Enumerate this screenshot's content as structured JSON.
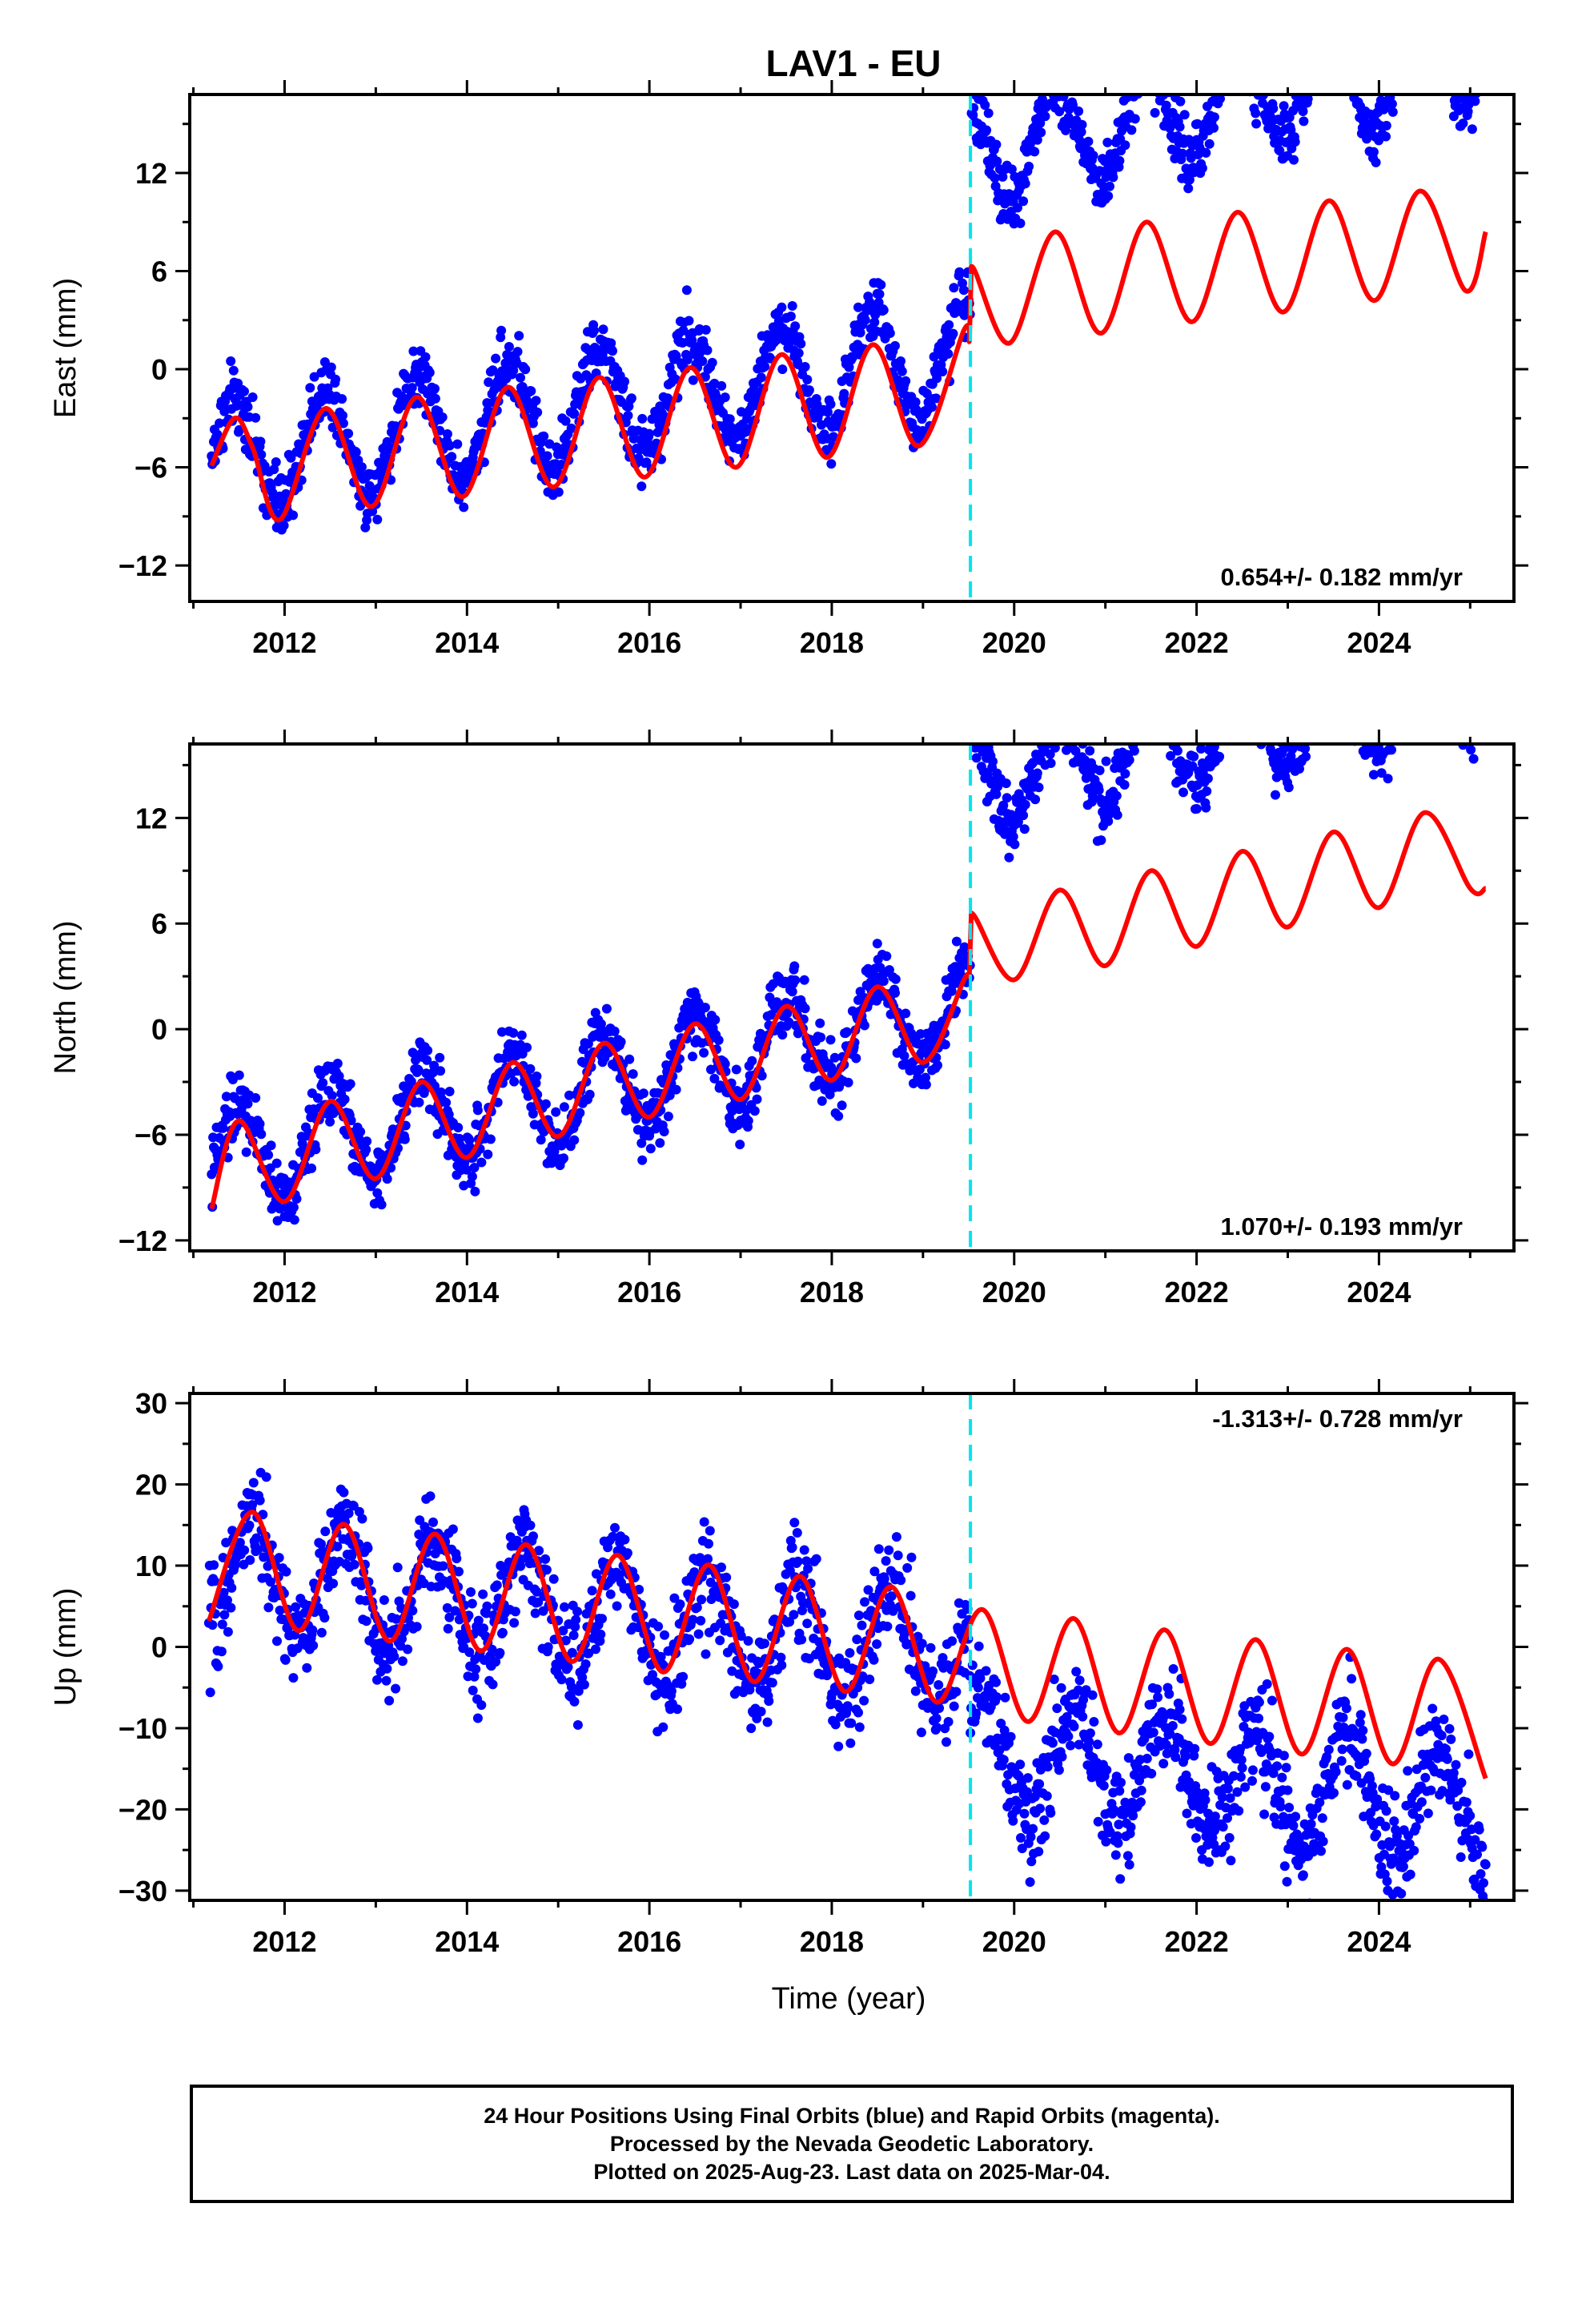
{
  "title": "LAV1 - EU",
  "xlabel": "Time (year)",
  "colors": {
    "final_orbits": "#0000ff",
    "model": "#ff0000",
    "offset": "#00e5ee"
  },
  "footer": {
    "line1": "24 Hour Positions Using Final Orbits (blue) and Rapid Orbits (magenta).",
    "line2": "Processed by the Nevada Geodetic Laboratory.",
    "line3": "Plotted on 2025-Aug-23. Last data on 2025-Mar-04."
  },
  "chart_data": [
    {
      "type": "scatter",
      "ylabel": "East (mm)",
      "xlim": [
        2010.96,
        2025.48
      ],
      "ylim": [
        -14.2,
        16.8
      ],
      "xticks": [
        2012,
        2014,
        2016,
        2018,
        2020,
        2022,
        2024
      ],
      "yticks": [
        -12,
        -6,
        0,
        6,
        12
      ],
      "offset_epoch": 2019.52,
      "rate_label": "0.654+/- 0.182 mm/yr",
      "rate_position": "bottom-right",
      "series": [
        {
          "name": "model",
          "x": [
            2011.2,
            2011.45,
            2011.65,
            2011.95,
            2012.45,
            2012.95,
            2013.45,
            2013.95,
            2014.45,
            2014.95,
            2015.45,
            2015.95,
            2016.45,
            2016.95,
            2017.45,
            2017.95,
            2018.45,
            2018.95,
            2019.45,
            2019.51,
            2019.53,
            2019.95,
            2020.45,
            2020.95,
            2021.45,
            2021.95,
            2022.45,
            2022.95,
            2023.45,
            2023.95,
            2024.45,
            2024.95,
            2025.17
          ],
          "values": [
            -5.9,
            -3.0,
            -4.8,
            -9.2,
            -2.4,
            -8.4,
            -1.7,
            -7.8,
            -1.1,
            -7.2,
            -0.5,
            -6.6,
            0.1,
            -6.0,
            0.9,
            -5.4,
            1.5,
            -4.7,
            2.4,
            1.8,
            6.3,
            1.6,
            8.4,
            2.2,
            9.0,
            2.9,
            9.6,
            3.5,
            10.3,
            4.2,
            10.9,
            4.8,
            8.4
          ]
        },
        {
          "name": "daily",
          "trend": {
            "t0": 2011.17,
            "pre": [
              -5.5,
              0.78
            ],
            "post": [
              3.6,
              1.15
            ]
          },
          "seasonal": {
            "amp": 3.4,
            "peak": 0.45
          },
          "noise": 1.35,
          "count": 1800
        }
      ]
    },
    {
      "type": "scatter",
      "ylabel": "North (mm)",
      "xlim": [
        2010.96,
        2025.48
      ],
      "ylim": [
        -12.6,
        16.2
      ],
      "xticks": [
        2012,
        2014,
        2016,
        2018,
        2020,
        2022,
        2024
      ],
      "yticks": [
        -12,
        -6,
        0,
        6,
        12
      ],
      "offset_epoch": 2019.52,
      "rate_label": "1.070+/- 0.193 mm/yr",
      "rate_position": "bottom-right",
      "series": [
        {
          "name": "model",
          "x": [
            2011.2,
            2011.5,
            2012.0,
            2012.5,
            2013.0,
            2013.5,
            2014.0,
            2014.5,
            2015.0,
            2015.5,
            2016.0,
            2016.5,
            2017.0,
            2017.5,
            2018.0,
            2018.5,
            2019.0,
            2019.45,
            2019.51,
            2019.53,
            2020.0,
            2020.5,
            2021.0,
            2021.5,
            2022.0,
            2022.5,
            2023.0,
            2023.5,
            2024.0,
            2024.5,
            2025.0,
            2025.17
          ],
          "values": [
            -10.2,
            -5.2,
            -9.8,
            -4.1,
            -8.5,
            -3.0,
            -7.3,
            -1.9,
            -6.1,
            -0.8,
            -5.0,
            0.3,
            -4.0,
            1.3,
            -2.9,
            2.4,
            -1.9,
            2.8,
            3.2,
            6.6,
            2.8,
            7.9,
            3.6,
            9.0,
            4.7,
            10.1,
            5.8,
            11.2,
            6.9,
            12.3,
            8.0,
            8.0
          ]
        },
        {
          "name": "daily",
          "trend": {
            "t0": 2011.17,
            "pre": [
              -7.6,
              1.05
            ],
            "post": [
              4.6,
              1.11
            ]
          },
          "seasonal": {
            "amp": 2.8,
            "peak": 0.5
          },
          "noise": 1.3,
          "count": 1800
        }
      ]
    },
    {
      "type": "scatter",
      "ylabel": "Up (mm)",
      "xlim": [
        2010.96,
        2025.48
      ],
      "ylim": [
        -31.2,
        31.2
      ],
      "xticks": [
        2012,
        2014,
        2016,
        2018,
        2020,
        2022,
        2024
      ],
      "yticks": [
        -30,
        -20,
        -10,
        0,
        10,
        20,
        30
      ],
      "offset_epoch": 2019.52,
      "rate_label": "-1.313+/- 0.728 mm/yr",
      "rate_position": "top-right",
      "series": [
        {
          "name": "model",
          "x": [
            2011.17,
            2011.65,
            2012.15,
            2012.65,
            2013.15,
            2013.65,
            2014.15,
            2014.65,
            2015.15,
            2015.65,
            2016.15,
            2016.65,
            2017.15,
            2017.65,
            2018.15,
            2018.65,
            2019.15,
            2019.65,
            2020.15,
            2020.65,
            2021.15,
            2021.65,
            2022.15,
            2022.65,
            2023.15,
            2023.65,
            2024.15,
            2024.65,
            2025.17
          ],
          "values": [
            3.2,
            16.6,
            2.0,
            15.1,
            0.7,
            13.9,
            -0.5,
            12.6,
            -1.8,
            11.3,
            -3.1,
            10.1,
            -4.3,
            8.7,
            -5.5,
            7.4,
            -6.8,
            4.6,
            -9.2,
            3.5,
            -10.6,
            2.1,
            -11.9,
            0.9,
            -13.2,
            -0.3,
            -14.4,
            -1.5,
            -16.2
          ]
        },
        {
          "name": "daily",
          "trend": {
            "t0": 2011.17,
            "pre": [
              9.2,
              -1.25
            ],
            "post": [
              -2.6,
              -1.25
            ]
          },
          "seasonal": {
            "amp": 7.0,
            "peak": 0.65
          },
          "noise": 4.3,
          "count": 1800
        }
      ]
    }
  ]
}
